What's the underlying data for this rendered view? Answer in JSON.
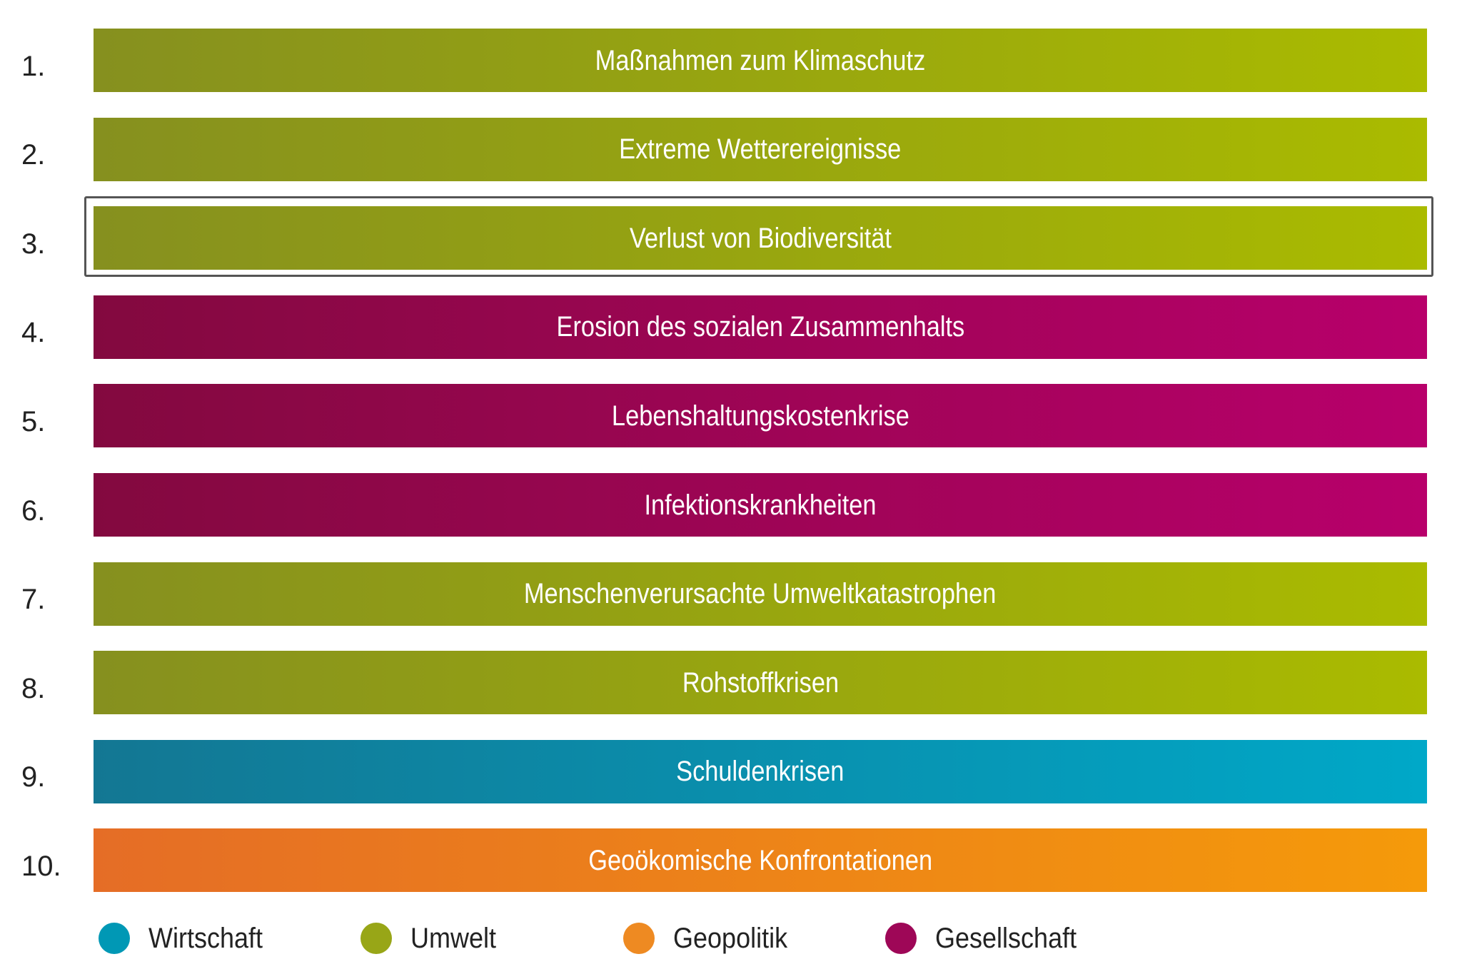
{
  "chart_data": {
    "type": "bar",
    "title": "",
    "items": [
      {
        "rank": "1.",
        "label": "Maßnahmen zum Klimaschutz",
        "category": "Umwelt"
      },
      {
        "rank": "2.",
        "label": "Extreme Wetterereignisse",
        "category": "Umwelt"
      },
      {
        "rank": "3.",
        "label": "Verlust von Biodiversität",
        "category": "Umwelt",
        "highlighted": true
      },
      {
        "rank": "4.",
        "label": "Erosion des sozialen Zusammenhalts",
        "category": "Gesellschaft"
      },
      {
        "rank": "5.",
        "label": "Lebenshaltungskostenkrise",
        "category": "Gesellschaft"
      },
      {
        "rank": "6.",
        "label": "Infektionskrankheiten",
        "category": "Gesellschaft"
      },
      {
        "rank": "7.",
        "label": "Menschenverursachte Umweltkatastrophen",
        "category": "Umwelt"
      },
      {
        "rank": "8.",
        "label": "Rohstoffkrisen",
        "category": "Umwelt"
      },
      {
        "rank": "9.",
        "label": "Schuldenkrisen",
        "category": "Wirtschaft"
      },
      {
        "rank": "10.",
        "label": "Geoökomische Konfrontationen",
        "category": "Geopolitik"
      }
    ],
    "legend": {
      "placement": "bottom-left",
      "entries": [
        {
          "name": "Wirtschaft",
          "color": "#0098b5"
        },
        {
          "name": "Umwelt",
          "color": "#98a617"
        },
        {
          "name": "Geopolitik",
          "color": "#ee8a22"
        },
        {
          "name": "Gesellschaft",
          "color": "#9e0757"
        }
      ]
    },
    "category_gradients": {
      "Umwelt": [
        "#86901f",
        "#aabb00"
      ],
      "Gesellschaft": [
        "#83093f",
        "#b8006b"
      ],
      "Wirtschaft": [
        "#137793",
        "#00a8c8"
      ],
      "Geopolitik": [
        "#e56d26",
        "#f59a0a"
      ]
    }
  }
}
